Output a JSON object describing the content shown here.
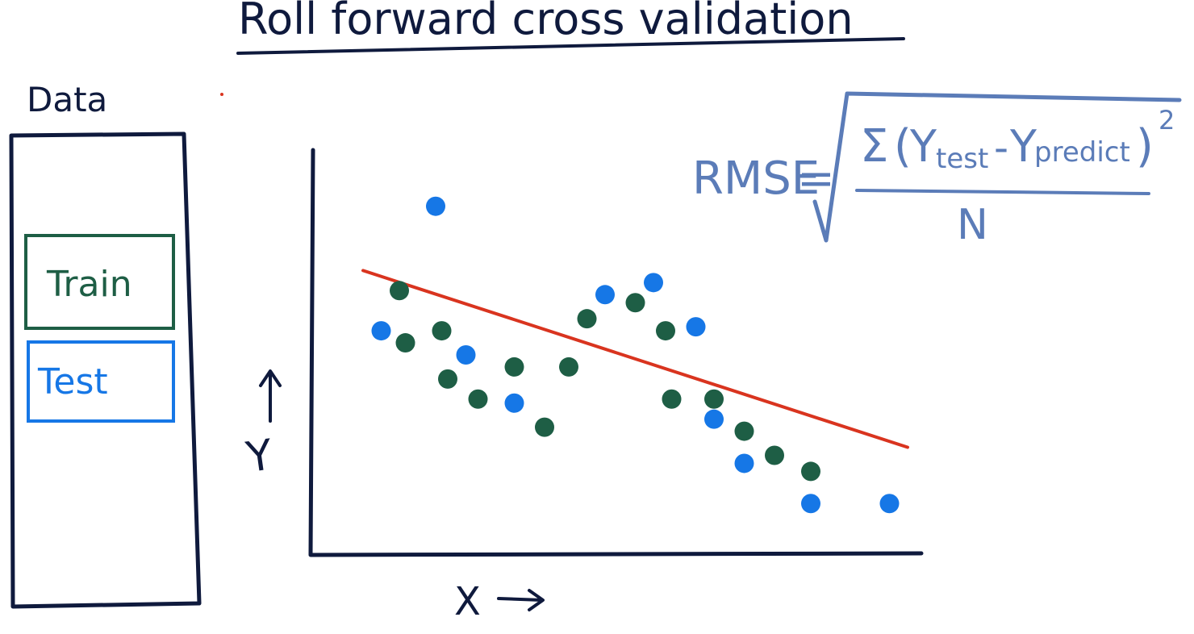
{
  "title": "Roll forward cross validation",
  "data_panel": {
    "label": "Data",
    "train_label": "Train",
    "test_label": "Test"
  },
  "axes": {
    "y_label": "Y",
    "x_label": "X",
    "arrow_right": "→",
    "arrow_up": "↑"
  },
  "formula": {
    "lhs": "RMSE",
    "equals": "=",
    "sigma": "Σ",
    "open_paren": "(",
    "y_test_base": "Y",
    "y_test_sub": "test",
    "minus": "-",
    "y_predict_base": "Y",
    "y_predict_sub": "predict",
    "close_paren": ")",
    "exponent": "2",
    "denominator": "N"
  },
  "colors": {
    "ink": "#0f1a3d",
    "train": "#1e5e45",
    "test": "#1677e6",
    "fit_line": "#d9341f",
    "formula": "#5b7cb8"
  },
  "chart_data": {
    "type": "scatter",
    "xlim": [
      0,
      100
    ],
    "ylim": [
      0,
      100
    ],
    "series": [
      {
        "name": "Train",
        "points": [
          [
            14,
            65
          ],
          [
            15,
            52
          ],
          [
            21,
            55
          ],
          [
            22,
            43
          ],
          [
            27,
            38
          ],
          [
            33,
            46
          ],
          [
            38,
            31
          ],
          [
            42,
            46
          ],
          [
            45,
            58
          ],
          [
            53,
            62
          ],
          [
            58,
            55
          ],
          [
            59,
            38
          ],
          [
            66,
            38
          ],
          [
            71,
            30
          ],
          [
            76,
            24
          ],
          [
            82,
            20
          ]
        ]
      },
      {
        "name": "Test",
        "points": [
          [
            11,
            55
          ],
          [
            20,
            86
          ],
          [
            25,
            49
          ],
          [
            33,
            37
          ],
          [
            48,
            64
          ],
          [
            56,
            67
          ],
          [
            63,
            56
          ],
          [
            66,
            33
          ],
          [
            71,
            22
          ],
          [
            82,
            12
          ],
          [
            95,
            12
          ]
        ]
      }
    ],
    "fit_line": {
      "from": [
        8,
        70
      ],
      "to": [
        98,
        26
      ]
    }
  }
}
